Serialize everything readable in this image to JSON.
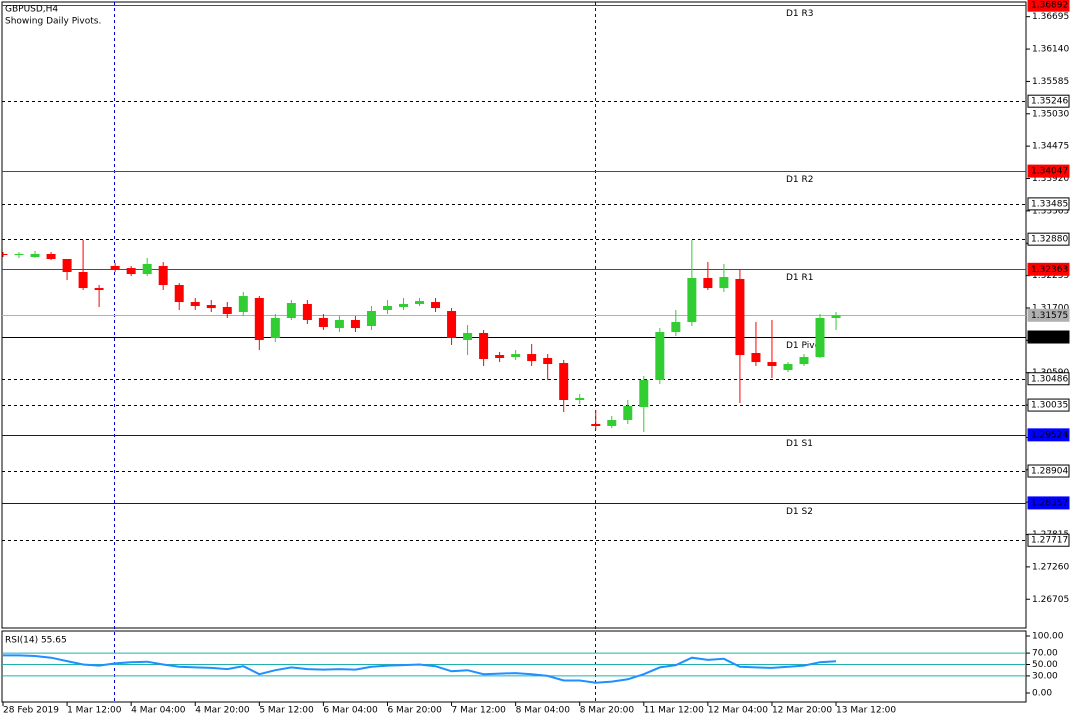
{
  "chart_data": {
    "type": "candlestick",
    "title": "GBPUSD,H4",
    "subtitle": "Showing Daily Pivots.",
    "categories": [
      "28 Feb 2019",
      null,
      null,
      null,
      "1 Mar 12:00",
      null,
      null,
      null,
      "4 Mar 04:00",
      null,
      null,
      null,
      "4 Mar 20:00",
      null,
      null,
      null,
      "5 Mar 12:00",
      null,
      null,
      null,
      "6 Mar 04:00",
      null,
      null,
      null,
      "6 Mar 20:00",
      null,
      null,
      null,
      "7 Mar 12:00",
      null,
      null,
      null,
      "8 Mar 04:00",
      null,
      null,
      null,
      "8 Mar 20:00",
      null,
      null,
      null,
      "11 Mar 12:00",
      null,
      null,
      null,
      "12 Mar 04:00",
      null,
      null,
      null,
      "12 Mar 20:00",
      null,
      null,
      null,
      "13 Mar 12:00"
    ],
    "open": [
      1.32626,
      1.32608,
      1.32574,
      1.32626,
      1.3254,
      1.32317,
      1.32042,
      1.3242,
      1.32385,
      1.32282,
      1.3242,
      1.32094,
      1.31802,
      1.31751,
      1.31717,
      1.31631,
      1.31871,
      1.31185,
      1.31528,
      1.31768,
      1.31528,
      1.31356,
      1.31494,
      1.31391,
      1.31665,
      1.31717,
      1.31768,
      1.31802,
      1.31648,
      1.31151,
      1.31271,
      1.30893,
      1.30859,
      1.3091,
      1.30842,
      1.30756,
      1.30122,
      1.2971,
      1.29676,
      1.29779,
      1.30002,
      1.30465,
      1.31288,
      1.31459,
      1.32214,
      1.32042,
      1.32197,
      1.30928,
      1.30773,
      1.30636,
      1.30739,
      1.30859,
      1.31528
    ],
    "high": [
      1.3266,
      1.3266,
      1.32677,
      1.3266,
      1.32488,
      1.32866,
      1.32094,
      1.32471,
      1.3242,
      1.32557,
      1.32488,
      1.32128,
      1.31871,
      1.31837,
      1.31802,
      1.31974,
      1.31905,
      1.31597,
      1.31837,
      1.31837,
      1.31597,
      1.31562,
      1.31562,
      1.31734,
      1.31837,
      1.31871,
      1.31871,
      1.31871,
      1.31699,
      1.31408,
      1.31322,
      1.30945,
      1.30979,
      1.31082,
      1.3091,
      1.30808,
      1.30224,
      1.2995,
      1.29847,
      1.30122,
      1.30533,
      1.31356,
      1.31665,
      1.32866,
      1.32488,
      1.32454,
      1.32351,
      1.31459,
      1.31494,
      1.30773,
      1.3091,
      1.31597,
      1.31631
    ],
    "low": [
      1.32574,
      1.32557,
      1.32557,
      1.32523,
      1.3218,
      1.32008,
      1.31717,
      1.32317,
      1.32248,
      1.32248,
      1.32008,
      1.31665,
      1.31665,
      1.31631,
      1.31528,
      1.31562,
      1.30979,
      1.31116,
      1.31494,
      1.31425,
      1.31322,
      1.31288,
      1.31288,
      1.31322,
      1.31597,
      1.31665,
      1.31734,
      1.31631,
      1.31065,
      1.30893,
      1.30705,
      1.30773,
      1.30808,
      1.30705,
      1.30465,
      1.29916,
      1.30053,
      1.29607,
      1.29641,
      1.2971,
      1.29573,
      1.30396,
      1.31219,
      1.31391,
      1.32008,
      1.31974,
      1.3007,
      1.30705,
      1.30499,
      1.30602,
      1.30705,
      1.30842,
      1.31322
    ],
    "close": [
      1.32608,
      1.32626,
      1.32626,
      1.3254,
      1.32317,
      1.32042,
      1.32008,
      1.32351,
      1.32282,
      1.32454,
      1.32094,
      1.31802,
      1.31734,
      1.31699,
      1.31597,
      1.31905,
      1.31151,
      1.31528,
      1.31785,
      1.31494,
      1.31374,
      1.31494,
      1.31356,
      1.31648,
      1.31734,
      1.31768,
      1.31819,
      1.31699,
      1.31185,
      1.31271,
      1.30825,
      1.30842,
      1.3091,
      1.3079,
      1.30739,
      1.30122,
      1.30156,
      1.29676,
      1.29779,
      1.30019,
      1.30465,
      1.31288,
      1.31459,
      1.32214,
      1.32042,
      1.32231,
      1.30893,
      1.30773,
      1.30705,
      1.30739,
      1.30859,
      1.31528,
      1.31575
    ],
    "up_color": "#32cd32",
    "down_color": "#ff0000",
    "ylim": [
      1.26212,
      1.36947
    ],
    "yticks": [
      1.36695,
      {
        "value": 1.3614,
        "label": "1.36140"
      },
      1.35585,
      {
        "value": 1.3503,
        "label": "1.35030"
      },
      1.34475,
      {
        "value": 1.3392,
        "label": "1.33920"
      },
      1.33365,
      {
        "value": 1.3281,
        "label": "1.32810"
      },
      1.32255,
      {
        "value": 1.317,
        "label": "1.31700"
      },
      1.31145,
      {
        "value": 1.3059,
        "label": "1.30590"
      },
      1.30035,
      {
        "value": 1.2948,
        "label": "1.29480"
      },
      1.28925,
      {
        "value": 1.2837,
        "label": "1.28370"
      },
      1.27815,
      {
        "value": 1.2726,
        "label": "1.27260"
      },
      1.26705
    ],
    "levels": [
      {
        "price": 1.36892,
        "label": "D1 R3",
        "color": "#ff0000",
        "style": "solid"
      },
      {
        "price": 1.35246,
        "color": "#000000",
        "style": "dotted"
      },
      {
        "price": 1.34047,
        "label": "D1 R2",
        "color": "#ff0000",
        "style": "solid"
      },
      {
        "price": 1.33485,
        "color": "#000000",
        "style": "dotted"
      },
      {
        "price": {
          "value": 1.3288,
          "label": "1.32880"
        },
        "color": "#000000",
        "style": "dotted"
      },
      {
        "price": 1.32363,
        "label": "D1 R1",
        "color": "#ff0000",
        "style": "solid"
      },
      {
        "price": 1.31575,
        "color": "#b0b0b0",
        "style": "solid"
      },
      {
        "price": 1.31202,
        "label": "D1 Pivot",
        "color": "#000000",
        "style": "solid"
      },
      {
        "price": 1.30486,
        "color": "#000000",
        "style": "dotted"
      },
      {
        "price": 1.30035,
        "color": "#000000",
        "style": "dotted"
      },
      {
        "price": 1.29524,
        "label": "D1 S1",
        "color": "#0000ff",
        "style": "solid"
      },
      {
        "price": 1.28904,
        "color": "#000000",
        "style": "dotted"
      },
      {
        "price": 1.28357,
        "label": "D1 S2",
        "color": "#0000ff",
        "style": "solid"
      },
      {
        "price": 1.27717,
        "color": "#000000",
        "style": "dotted"
      }
    ],
    "rsi": {
      "title": "RSI(14) 55.65",
      "color": "#1e90ff",
      "level_color": "#20b2aa",
      "levels": [
        70,
        50,
        30
      ],
      "ylim": [
        -15.8,
        108.8
      ],
      "yticks": [
        {
          "value": 100,
          "label": "100.00"
        },
        {
          "value": 70,
          "label": "70.00"
        },
        {
          "value": 50,
          "label": "50.00"
        },
        {
          "value": 30,
          "label": "30.00"
        },
        {
          "value": 0,
          "label": "0.00"
        }
      ],
      "values": [
        66,
        66,
        65,
        62,
        56,
        50,
        48,
        52,
        54,
        55,
        50,
        46,
        45,
        44,
        42,
        47,
        33,
        40,
        45,
        42,
        41,
        42,
        41,
        46,
        48,
        49,
        50,
        47,
        38,
        40,
        33,
        34,
        35,
        33,
        30,
        22,
        22,
        18,
        20,
        24,
        33,
        45,
        49,
        62,
        58,
        60,
        46,
        45,
        44,
        46,
        48,
        54,
        55.65
      ]
    }
  }
}
